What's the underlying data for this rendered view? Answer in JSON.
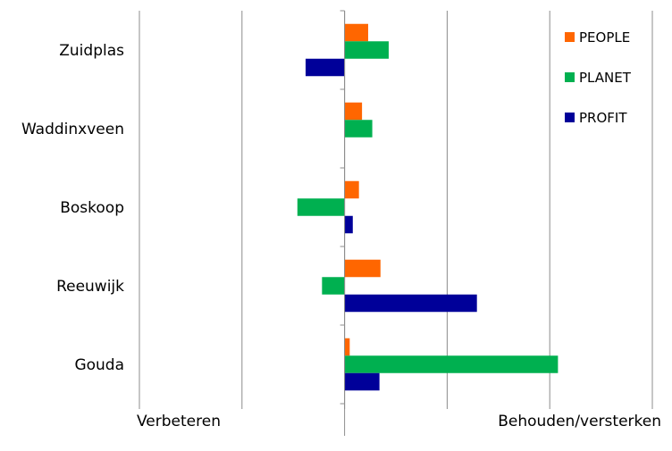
{
  "chart_data": {
    "type": "bar",
    "orientation": "horizontal",
    "categories": [
      "Zuidplas",
      "Waddinxveen",
      "Boskoop",
      "Reeuwijk",
      "Gouda"
    ],
    "series": [
      {
        "name": "PEOPLE",
        "color": "#FF6600",
        "values": [
          0.23,
          0.17,
          0.14,
          0.35,
          0.05
        ]
      },
      {
        "name": "PLANET",
        "color": "#00B050",
        "values": [
          0.43,
          0.27,
          -0.46,
          -0.22,
          2.08
        ]
      },
      {
        "name": "PROFIT",
        "color": "#000099",
        "values": [
          -0.38,
          0,
          0.08,
          1.29,
          0.34
        ]
      }
    ],
    "xlim": [
      -2,
      3
    ],
    "grid": true,
    "legend_position": "top-right",
    "x_axis_left_label": "Verbeteren",
    "x_axis_right_label": "Behouden/versterken"
  }
}
